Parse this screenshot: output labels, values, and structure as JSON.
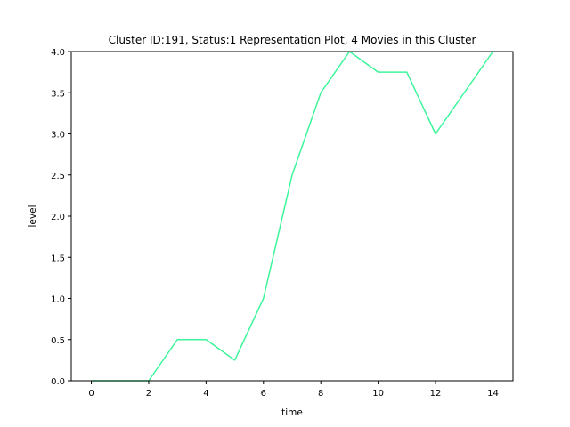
{
  "chart_data": {
    "type": "line",
    "title": "Cluster ID:191, Status:1 Representation Plot, 4 Movies in this Cluster",
    "xlabel": "time",
    "ylabel": "level",
    "xlim": [
      -0.7,
      14.7
    ],
    "ylim": [
      0,
      4.0
    ],
    "xticks": [
      0,
      2,
      4,
      6,
      8,
      10,
      12,
      14
    ],
    "yticks": [
      0.0,
      0.5,
      1.0,
      1.5,
      2.0,
      2.5,
      3.0,
      3.5,
      4.0
    ],
    "grid": false,
    "series": [
      {
        "color": "#3cf59b",
        "x": [
          0,
          1,
          2,
          3,
          4,
          5,
          6,
          7,
          8,
          9,
          10,
          11,
          12,
          13,
          14
        ],
        "y": [
          0.0,
          0.0,
          0.0,
          0.5,
          0.5,
          0.25,
          1.0,
          2.5,
          3.5,
          4.0,
          3.75,
          3.75,
          3.0,
          3.5,
          4.0
        ]
      }
    ]
  }
}
